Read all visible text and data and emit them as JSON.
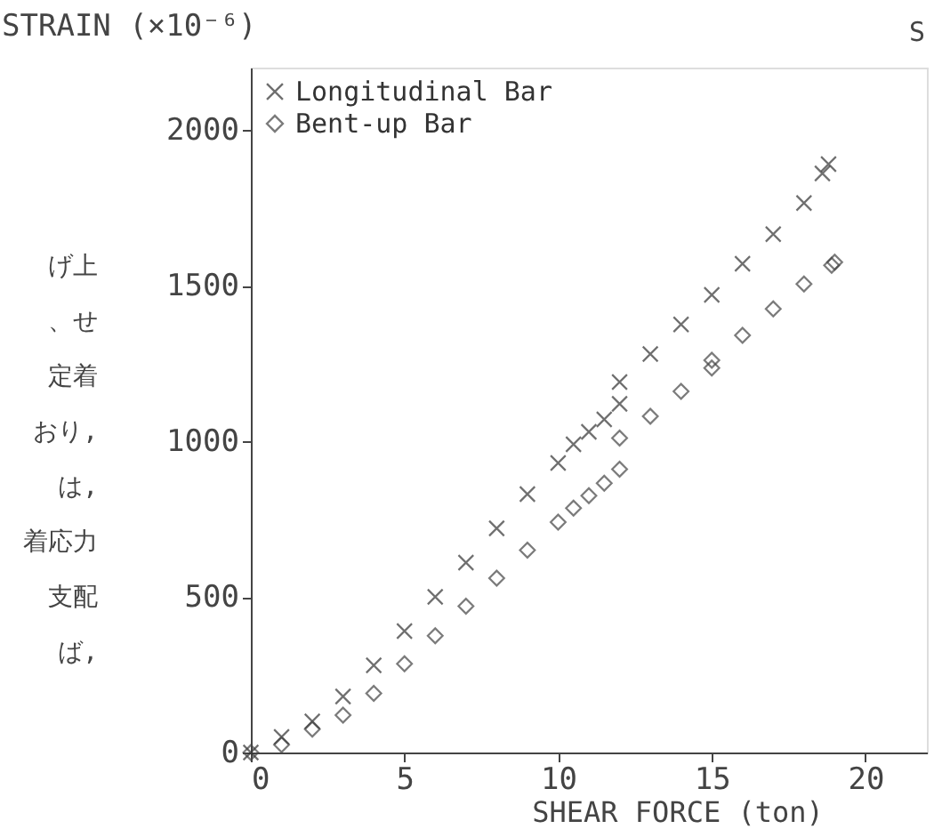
{
  "chart_data": {
    "type": "scatter",
    "ylabel": "STRAIN (×10⁻⁶)",
    "xlabel": "SHEAR FORCE (ton)",
    "xlim": [
      0,
      22
    ],
    "xticks": [
      0,
      5,
      10,
      15,
      20
    ],
    "ylim": [
      0,
      2200
    ],
    "yticks": [
      0,
      500,
      1000,
      1500,
      2000
    ],
    "grid": false,
    "legend": "top left",
    "annotations": [
      "げ上",
      "、せ",
      "定着",
      "おり,",
      "は,",
      "着応力",
      "支配",
      "ば,",
      "S"
    ],
    "series": [
      {
        "name": "Longitudinal Bar",
        "color": "#333333",
        "marker": "cross",
        "x": [
          0,
          1,
          2,
          3,
          4,
          5,
          6,
          7,
          8,
          9,
          10,
          10.5,
          11,
          11.5,
          12,
          12,
          13,
          14,
          15,
          16,
          17,
          18,
          18.6,
          18.8
        ],
        "values": [
          0,
          50,
          100,
          180,
          280,
          390,
          500,
          610,
          720,
          830,
          930,
          990,
          1030,
          1070,
          1120,
          1190,
          1280,
          1375,
          1470,
          1570,
          1665,
          1765,
          1860,
          1890
        ]
      },
      {
        "name": "Bent-up Bar",
        "color": "#444444",
        "marker": "diamond",
        "x": [
          0,
          1,
          2,
          3,
          4,
          5,
          6,
          7,
          8,
          9,
          10,
          10.5,
          11,
          11.5,
          12,
          12,
          13,
          14,
          15,
          15,
          16,
          17,
          18,
          18.9,
          19
        ],
        "values": [
          0,
          25,
          75,
          120,
          190,
          285,
          375,
          470,
          560,
          650,
          740,
          785,
          825,
          865,
          910,
          1010,
          1080,
          1160,
          1260,
          1235,
          1340,
          1425,
          1505,
          1565,
          1575
        ]
      }
    ]
  }
}
